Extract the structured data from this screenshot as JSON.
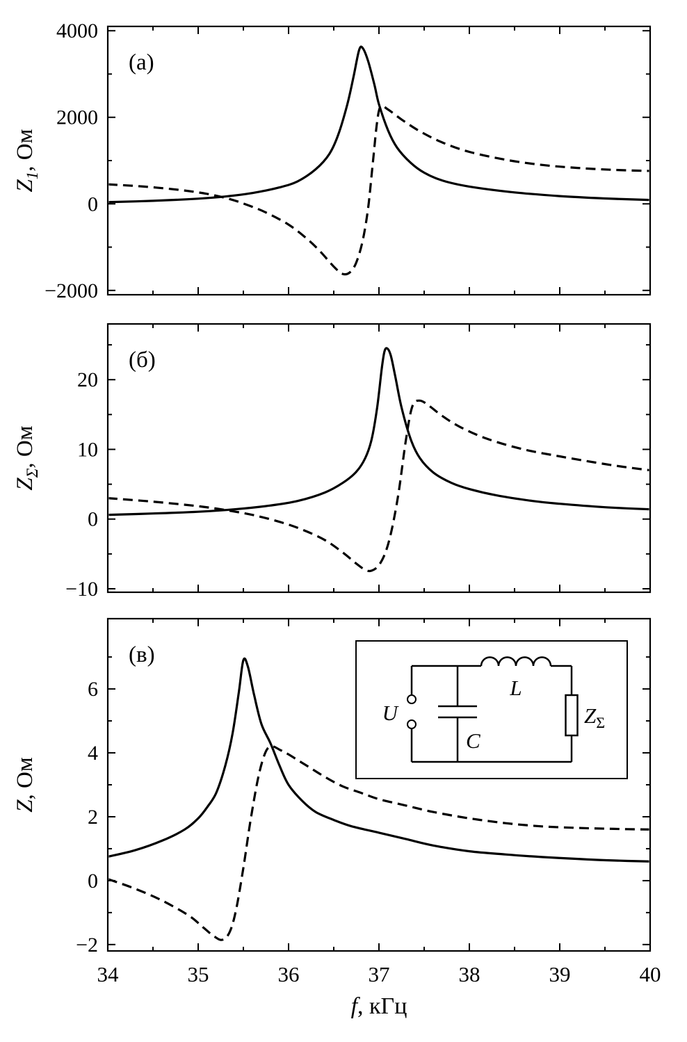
{
  "figure": {
    "xlabel": {
      "var": "f",
      "suffix": ", кГц"
    },
    "panel_labels": [
      "(а)",
      "(б)",
      "(в)"
    ]
  },
  "chart_data": [
    {
      "type": "line",
      "panel_label": "(а)",
      "ylabel": {
        "var": "Z",
        "sub": "1",
        "suffix": ", Ом"
      },
      "xlim": [
        34,
        40
      ],
      "ylim": [
        -2100,
        4100
      ],
      "xticks": [
        34,
        35,
        36,
        37,
        38,
        39,
        40
      ],
      "yticks": [
        -2000,
        0,
        2000,
        4000
      ],
      "show_x_tick_labels": false,
      "grid": false,
      "series": [
        {
          "name": "Z1-magnitude-solid",
          "line": "solid",
          "points": [
            [
              34,
              40
            ],
            [
              34.5,
              70
            ],
            [
              35,
              120
            ],
            [
              35.3,
              170
            ],
            [
              35.6,
              250
            ],
            [
              35.9,
              380
            ],
            [
              36.1,
              520
            ],
            [
              36.3,
              800
            ],
            [
              36.45,
              1150
            ],
            [
              36.55,
              1600
            ],
            [
              36.65,
              2300
            ],
            [
              36.72,
              2950
            ],
            [
              36.78,
              3550
            ],
            [
              36.82,
              3600
            ],
            [
              36.88,
              3300
            ],
            [
              36.95,
              2750
            ],
            [
              37.0,
              2300
            ],
            [
              37.1,
              1700
            ],
            [
              37.2,
              1300
            ],
            [
              37.35,
              950
            ],
            [
              37.5,
              720
            ],
            [
              37.7,
              540
            ],
            [
              38,
              400
            ],
            [
              38.5,
              265
            ],
            [
              39,
              180
            ],
            [
              39.5,
              125
            ],
            [
              40,
              90
            ]
          ]
        },
        {
          "name": "Z1-reactance-dashed",
          "line": "dashed",
          "points": [
            [
              34,
              450
            ],
            [
              34.4,
              400
            ],
            [
              34.8,
              320
            ],
            [
              35.1,
              230
            ],
            [
              35.35,
              110
            ],
            [
              35.55,
              -30
            ],
            [
              35.75,
              -200
            ],
            [
              36,
              -480
            ],
            [
              36.2,
              -800
            ],
            [
              36.35,
              -1100
            ],
            [
              36.5,
              -1450
            ],
            [
              36.6,
              -1620
            ],
            [
              36.68,
              -1580
            ],
            [
              36.75,
              -1350
            ],
            [
              36.82,
              -850
            ],
            [
              36.88,
              -100
            ],
            [
              36.93,
              900
            ],
            [
              36.98,
              1900
            ],
            [
              37.02,
              2250
            ],
            [
              37.1,
              2180
            ],
            [
              37.25,
              1950
            ],
            [
              37.45,
              1680
            ],
            [
              37.7,
              1420
            ],
            [
              38,
              1200
            ],
            [
              38.4,
              1020
            ],
            [
              38.8,
              900
            ],
            [
              39.2,
              830
            ],
            [
              39.6,
              785
            ],
            [
              40,
              760
            ]
          ]
        }
      ]
    },
    {
      "type": "line",
      "panel_label": "(б)",
      "ylabel": {
        "var": "Z",
        "sub": "Σ",
        "suffix": ", Ом"
      },
      "xlim": [
        34,
        40
      ],
      "ylim": [
        -10.5,
        28
      ],
      "xticks": [
        34,
        35,
        36,
        37,
        38,
        39,
        40
      ],
      "yticks": [
        -10,
        0,
        10,
        20
      ],
      "show_x_tick_labels": false,
      "grid": false,
      "series": [
        {
          "name": "Zsigma-magnitude-solid",
          "line": "solid",
          "points": [
            [
              34,
              0.6
            ],
            [
              34.5,
              0.8
            ],
            [
              35,
              1.05
            ],
            [
              35.4,
              1.4
            ],
            [
              35.8,
              1.95
            ],
            [
              36.1,
              2.6
            ],
            [
              36.4,
              3.8
            ],
            [
              36.6,
              5.2
            ],
            [
              36.75,
              6.8
            ],
            [
              36.85,
              8.8
            ],
            [
              36.92,
              11.5
            ],
            [
              36.98,
              16
            ],
            [
              37.03,
              21.5
            ],
            [
              37.06,
              24.0
            ],
            [
              37.09,
              24.5
            ],
            [
              37.13,
              23.5
            ],
            [
              37.18,
              20.5
            ],
            [
              37.25,
              16
            ],
            [
              37.35,
              11.5
            ],
            [
              37.45,
              8.8
            ],
            [
              37.6,
              6.7
            ],
            [
              37.8,
              5.2
            ],
            [
              38,
              4.3
            ],
            [
              38.3,
              3.4
            ],
            [
              38.7,
              2.6
            ],
            [
              39,
              2.2
            ],
            [
              39.5,
              1.7
            ],
            [
              40,
              1.4
            ]
          ]
        },
        {
          "name": "Zsigma-reactance-dashed",
          "line": "dashed",
          "points": [
            [
              34,
              3.0
            ],
            [
              34.5,
              2.5
            ],
            [
              35,
              1.85
            ],
            [
              35.3,
              1.3
            ],
            [
              35.6,
              0.6
            ],
            [
              35.9,
              -0.4
            ],
            [
              36.15,
              -1.5
            ],
            [
              36.4,
              -3.0
            ],
            [
              36.6,
              -4.8
            ],
            [
              36.75,
              -6.4
            ],
            [
              36.85,
              -7.3
            ],
            [
              36.92,
              -7.4
            ],
            [
              37.0,
              -6.6
            ],
            [
              37.08,
              -4.5
            ],
            [
              37.15,
              -1.0
            ],
            [
              37.22,
              4.0
            ],
            [
              37.3,
              11.5
            ],
            [
              37.37,
              16.2
            ],
            [
              37.45,
              17.0
            ],
            [
              37.55,
              16.3
            ],
            [
              37.7,
              14.8
            ],
            [
              37.9,
              13.2
            ],
            [
              38.2,
              11.5
            ],
            [
              38.6,
              10.0
            ],
            [
              39,
              9.0
            ],
            [
              39.4,
              8.1
            ],
            [
              39.7,
              7.5
            ],
            [
              40,
              7.0
            ]
          ]
        }
      ]
    },
    {
      "type": "line",
      "panel_label": "(в)",
      "ylabel": {
        "var": "Z",
        "sub": "",
        "suffix": ", Ом"
      },
      "xlabel": {
        "var": "f",
        "suffix": ", кГц"
      },
      "xlim": [
        34,
        40
      ],
      "ylim": [
        -2.2,
        8.2
      ],
      "xticks": [
        34,
        35,
        36,
        37,
        38,
        39,
        40
      ],
      "yticks": [
        -2,
        0,
        2,
        4,
        6
      ],
      "show_x_tick_labels": true,
      "grid": false,
      "series": [
        {
          "name": "Z-magnitude-solid",
          "line": "solid",
          "points": [
            [
              34,
              0.75
            ],
            [
              34.3,
              0.95
            ],
            [
              34.6,
              1.25
            ],
            [
              34.85,
              1.6
            ],
            [
              35.0,
              1.95
            ],
            [
              35.1,
              2.3
            ],
            [
              35.2,
              2.75
            ],
            [
              35.3,
              3.6
            ],
            [
              35.38,
              4.6
            ],
            [
              35.45,
              5.9
            ],
            [
              35.5,
              6.9
            ],
            [
              35.55,
              6.7
            ],
            [
              35.62,
              5.8
            ],
            [
              35.7,
              4.9
            ],
            [
              35.8,
              4.3
            ],
            [
              35.9,
              3.6
            ],
            [
              36.0,
              3.0
            ],
            [
              36.15,
              2.5
            ],
            [
              36.3,
              2.15
            ],
            [
              36.5,
              1.9
            ],
            [
              36.7,
              1.7
            ],
            [
              37.0,
              1.5
            ],
            [
              37.3,
              1.3
            ],
            [
              37.6,
              1.1
            ],
            [
              38.0,
              0.92
            ],
            [
              38.4,
              0.82
            ],
            [
              38.8,
              0.74
            ],
            [
              39.2,
              0.68
            ],
            [
              39.6,
              0.63
            ],
            [
              40,
              0.6
            ]
          ]
        },
        {
          "name": "Z-reactance-dashed",
          "line": "dashed",
          "points": [
            [
              34,
              0.05
            ],
            [
              34.3,
              -0.25
            ],
            [
              34.6,
              -0.62
            ],
            [
              34.9,
              -1.1
            ],
            [
              35.05,
              -1.45
            ],
            [
              35.18,
              -1.75
            ],
            [
              35.27,
              -1.85
            ],
            [
              35.35,
              -1.6
            ],
            [
              35.42,
              -0.9
            ],
            [
              35.5,
              0.4
            ],
            [
              35.58,
              1.9
            ],
            [
              35.67,
              3.3
            ],
            [
              35.75,
              4.05
            ],
            [
              35.82,
              4.2
            ],
            [
              35.9,
              4.1
            ],
            [
              36.0,
              3.95
            ],
            [
              36.2,
              3.6
            ],
            [
              36.4,
              3.25
            ],
            [
              36.6,
              2.95
            ],
            [
              36.8,
              2.75
            ],
            [
              37.0,
              2.55
            ],
            [
              37.3,
              2.35
            ],
            [
              37.6,
              2.15
            ],
            [
              38.0,
              1.95
            ],
            [
              38.4,
              1.8
            ],
            [
              38.8,
              1.7
            ],
            [
              39.2,
              1.65
            ],
            [
              39.6,
              1.62
            ],
            [
              40,
              1.6
            ]
          ]
        }
      ]
    }
  ],
  "inset": {
    "source_label": "U",
    "inductor_label": "L",
    "capacitor_label": "C",
    "load_label": {
      "base": "Z",
      "sub": "Σ"
    }
  },
  "colors": {
    "line": "#000000",
    "background": "#ffffff"
  }
}
